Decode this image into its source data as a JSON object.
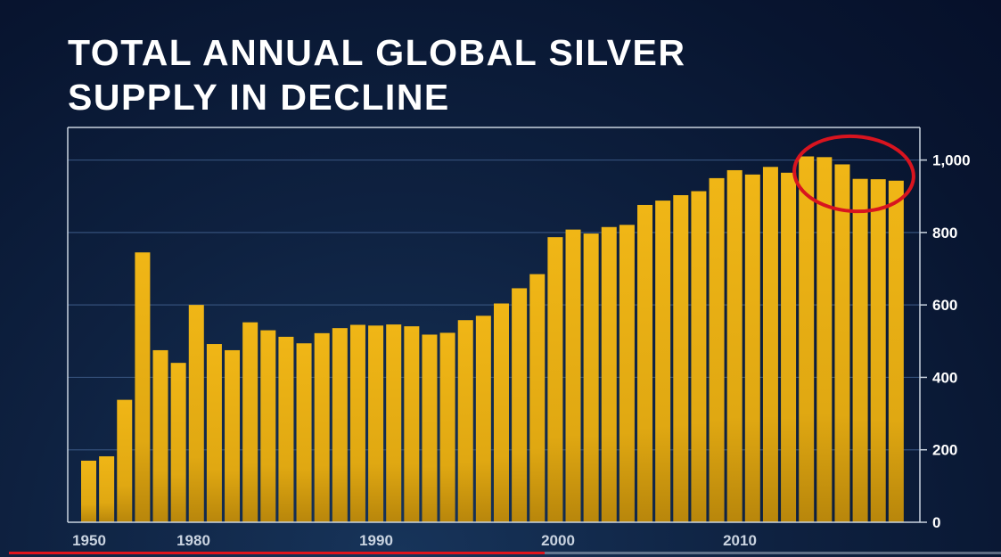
{
  "chart_title": [
    "TOTAL ANNUAL GLOBAL SILVER",
    "SUPPLY IN DECLINE"
  ],
  "chart_data": {
    "type": "bar",
    "title": "TOTAL ANNUAL GLOBAL SILVER SUPPLY IN DECLINE",
    "xlabel": "",
    "ylabel": "",
    "x_tick_labels": [
      "1950",
      "1980",
      "1990",
      "2000",
      "2010"
    ],
    "y_ticks": [
      0,
      200,
      400,
      600,
      800,
      1000
    ],
    "y_tick_labels": [
      "0",
      "200",
      "400",
      "600",
      "800",
      "1,000"
    ],
    "ylim": [
      0,
      1090
    ],
    "grid": true,
    "y_axis_side": "right",
    "bar_color": "#e8ae12",
    "values": [
      170,
      182,
      338,
      745,
      475,
      440,
      600,
      492,
      475,
      552,
      530,
      512,
      494,
      522,
      536,
      545,
      543,
      546,
      541,
      518,
      523,
      558,
      570,
      604,
      646,
      685,
      787,
      808,
      797,
      815,
      821,
      876,
      888,
      903,
      914,
      950,
      972,
      960,
      981,
      965,
      1010,
      1008,
      988,
      948,
      947,
      943
    ],
    "annotation": {
      "type": "circle",
      "color": "#d8141f",
      "highlights_last_bars": 6
    }
  },
  "video_progress": {
    "fraction": 0.54,
    "color": "#e0141c"
  }
}
